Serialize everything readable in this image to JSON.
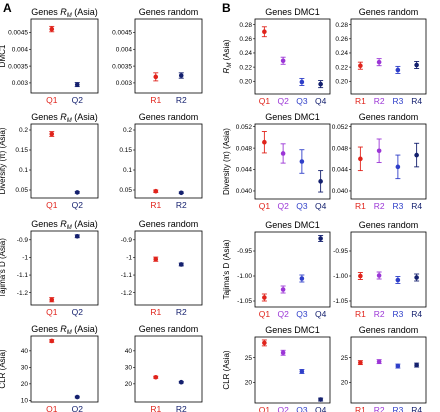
{
  "panel_labels": [
    "A",
    "B"
  ],
  "colors": {
    "q1": "#e0231b",
    "q2": "#9b35d6",
    "q3": "#2f3fc9",
    "q4": "#14206e",
    "frame": "#000000"
  },
  "chart_data": [
    {
      "type": "scatter",
      "title": "Genes R_M (Asia)",
      "ylabel": "DMC1",
      "categories": [
        "Q1",
        "Q2"
      ],
      "colors": [
        "#e0231b",
        "#14206e"
      ],
      "values": [
        0.0046,
        0.00295
      ],
      "err": [
        8e-05,
        6e-05
      ],
      "ylim": [
        0.0027,
        0.0049
      ],
      "yticks": [
        0.003,
        0.0035,
        0.004,
        0.0045
      ],
      "ytick_labels": [
        "0.003",
        "0.0035",
        "0.004",
        "0.0045"
      ]
    },
    {
      "type": "scatter",
      "title": "Genes random",
      "ylabel": "",
      "categories": [
        "R1",
        "R2"
      ],
      "colors": [
        "#e0231b",
        "#14206e"
      ],
      "values": [
        0.00318,
        0.00322
      ],
      "err": [
        0.00012,
        8e-05
      ],
      "ylim": [
        0.0027,
        0.0049
      ],
      "yticks": [
        0.003,
        0.0035,
        0.004,
        0.0045
      ],
      "ytick_labels": [
        "0.003",
        "0.0035",
        "0.004",
        "0.0045"
      ]
    },
    {
      "type": "scatter",
      "title": "Genes R_M (Asia)",
      "ylabel": "Diversity (π) (Asia)",
      "categories": [
        "Q1",
        "Q2"
      ],
      "colors": [
        "#e0231b",
        "#14206e"
      ],
      "values": [
        0.19,
        0.044
      ],
      "err": [
        0.006,
        0.002
      ],
      "ylim": [
        0.03,
        0.215
      ],
      "yticks": [
        0.05,
        0.1,
        0.15,
        0.2
      ],
      "ytick_labels": [
        "0.05",
        "0.1",
        "0.15",
        "0.2"
      ]
    },
    {
      "type": "scatter",
      "title": "Genes random",
      "ylabel": "",
      "categories": [
        "R1",
        "R2"
      ],
      "colors": [
        "#e0231b",
        "#14206e"
      ],
      "values": [
        0.047,
        0.043
      ],
      "err": [
        0.003,
        0.002
      ],
      "ylim": [
        0.03,
        0.215
      ],
      "yticks": [
        0.05,
        0.1,
        0.15,
        0.2
      ],
      "ytick_labels": [
        "0.05",
        "0.1",
        "0.15",
        "0.2"
      ]
    },
    {
      "type": "scatter",
      "title": "Genes R_M (Asia)",
      "ylabel": "Tajima's D (Asia)",
      "categories": [
        "Q1",
        "Q2"
      ],
      "colors": [
        "#e0231b",
        "#14206e"
      ],
      "values": [
        -1.24,
        -0.88
      ],
      "err": [
        0.012,
        0.008
      ],
      "ylim": [
        -1.27,
        -0.85
      ],
      "yticks": [
        -1.2,
        -1.1,
        -1.0,
        -0.9
      ],
      "ytick_labels": [
        "-1.2",
        "-1.1",
        "-1",
        "-0.9"
      ]
    },
    {
      "type": "scatter",
      "title": "Genes random",
      "ylabel": "",
      "categories": [
        "R1",
        "R2"
      ],
      "colors": [
        "#e0231b",
        "#14206e"
      ],
      "values": [
        -1.01,
        -1.04
      ],
      "err": [
        0.012,
        0.008
      ],
      "ylim": [
        -1.27,
        -0.85
      ],
      "yticks": [
        -1.2,
        -1.1,
        -1.0,
        -0.9
      ],
      "ytick_labels": [
        "-1.2",
        "-1.1",
        "-1",
        "-0.9"
      ]
    },
    {
      "type": "scatter",
      "title": "Genes R_M (Asia)",
      "ylabel": "CLR (Asia)",
      "categories": [
        "Q1",
        "Q2"
      ],
      "colors": [
        "#e0231b",
        "#14206e"
      ],
      "values": [
        46,
        12
      ],
      "err": [
        0.8,
        0.5
      ],
      "ylim": [
        9,
        49
      ],
      "yticks": [
        10,
        20,
        30,
        40
      ],
      "ytick_labels": [
        "10",
        "20",
        "30",
        "40"
      ]
    },
    {
      "type": "scatter",
      "title": "Genes random",
      "ylabel": "",
      "categories": [
        "R1",
        "R2"
      ],
      "colors": [
        "#e0231b",
        "#14206e"
      ],
      "values": [
        24,
        21
      ],
      "err": [
        0.6,
        0.5
      ],
      "ylim": [
        9,
        49
      ],
      "yticks": [
        20,
        30,
        40
      ],
      "ytick_labels": [
        "20",
        "30",
        "40"
      ]
    },
    {
      "type": "scatter",
      "title": "Genes DMC1",
      "ylabel": "R_M (Asia)",
      "categories": [
        "Q1",
        "Q2",
        "Q3",
        "Q4"
      ],
      "colors": [
        "#e0231b",
        "#9b35d6",
        "#2f3fc9",
        "#14206e"
      ],
      "values": [
        0.27,
        0.229,
        0.199,
        0.196
      ],
      "err": [
        0.007,
        0.005,
        0.005,
        0.005
      ],
      "ylim": [
        0.182,
        0.288
      ],
      "yticks": [
        0.2,
        0.22,
        0.24,
        0.26,
        0.28
      ],
      "ytick_labels": [
        "0.20",
        "0.22",
        "0.24",
        "0.26",
        "0.28"
      ]
    },
    {
      "type": "scatter",
      "title": "Genes random",
      "ylabel": "",
      "categories": [
        "R1",
        "R2",
        "R3",
        "R4"
      ],
      "colors": [
        "#e0231b",
        "#9b35d6",
        "#2f3fc9",
        "#14206e"
      ],
      "values": [
        0.222,
        0.227,
        0.216,
        0.223
      ],
      "err": [
        0.005,
        0.005,
        0.005,
        0.005
      ],
      "ylim": [
        0.182,
        0.288
      ],
      "yticks": [
        0.2,
        0.22,
        0.24,
        0.26,
        0.28
      ],
      "ytick_labels": [
        "0.20",
        "0.22",
        "0.24",
        "0.26",
        "0.28"
      ]
    },
    {
      "type": "scatter",
      "title": "Genes DMC1",
      "ylabel": "Diversity (π) (Asia)",
      "categories": [
        "Q1",
        "Q2",
        "Q3",
        "Q4"
      ],
      "colors": [
        "#e0231b",
        "#9b35d6",
        "#2f3fc9",
        "#14206e"
      ],
      "values": [
        0.0491,
        0.047,
        0.0455,
        0.0418
      ],
      "err": [
        0.002,
        0.0018,
        0.0022,
        0.002
      ],
      "ylim": [
        0.0385,
        0.0525
      ],
      "yticks": [
        0.04,
        0.044,
        0.048,
        0.052
      ],
      "ytick_labels": [
        "0.040",
        "0.044",
        "0.048",
        "0.052"
      ]
    },
    {
      "type": "scatter",
      "title": "Genes random",
      "ylabel": "",
      "categories": [
        "R1",
        "R2",
        "R3",
        "R4"
      ],
      "colors": [
        "#e0231b",
        "#9b35d6",
        "#2f3fc9",
        "#14206e"
      ],
      "values": [
        0.046,
        0.0475,
        0.0445,
        0.0467
      ],
      "err": [
        0.0022,
        0.0022,
        0.0022,
        0.0022
      ],
      "ylim": [
        0.0385,
        0.0525
      ],
      "yticks": [
        0.04,
        0.044,
        0.048,
        0.052
      ],
      "ytick_labels": [
        "0.040",
        "0.044",
        "0.048",
        "0.052"
      ]
    },
    {
      "type": "scatter",
      "title": "Genes DMC1",
      "ylabel": "Tajima's D (Asia)",
      "categories": [
        "Q1",
        "Q2",
        "Q3",
        "Q4"
      ],
      "colors": [
        "#e0231b",
        "#9b35d6",
        "#2f3fc9",
        "#14206e"
      ],
      "values": [
        -1.043,
        -1.027,
        -1.005,
        -0.925
      ],
      "err": [
        0.007,
        0.007,
        0.007,
        0.006
      ],
      "ylim": [
        -1.062,
        -0.912
      ],
      "yticks": [
        -1.05,
        -1.0,
        -0.95
      ],
      "ytick_labels": [
        "-1.05",
        "-1.00",
        "-0.95"
      ]
    },
    {
      "type": "scatter",
      "title": "Genes random",
      "ylabel": "",
      "categories": [
        "R1",
        "R2",
        "R3",
        "R4"
      ],
      "colors": [
        "#e0231b",
        "#9b35d6",
        "#2f3fc9",
        "#14206e"
      ],
      "values": [
        -1.0,
        -0.999,
        -1.008,
        -1.003
      ],
      "err": [
        0.007,
        0.007,
        0.007,
        0.007
      ],
      "ylim": [
        -1.062,
        -0.912
      ],
      "yticks": [
        -1.05,
        -1.0,
        -0.95
      ],
      "ytick_labels": [
        "-1.05",
        "-1.00",
        "-0.95"
      ]
    },
    {
      "type": "scatter",
      "title": "Genes DMC1",
      "ylabel": "CLR (Asia)",
      "categories": [
        "Q1",
        "Q2",
        "Q3",
        "Q4"
      ],
      "colors": [
        "#e0231b",
        "#9b35d6",
        "#2f3fc9",
        "#14206e"
      ],
      "values": [
        28,
        26,
        22.2,
        16.5
      ],
      "err": [
        0.6,
        0.5,
        0.4,
        0.3
      ],
      "ylim": [
        15.8,
        29.2
      ],
      "yticks": [
        20,
        25
      ],
      "ytick_labels": [
        "20",
        "25"
      ]
    },
    {
      "type": "scatter",
      "title": "Genes random",
      "ylabel": "",
      "categories": [
        "R1",
        "R2",
        "R3",
        "R4"
      ],
      "colors": [
        "#e0231b",
        "#9b35d6",
        "#2f3fc9",
        "#14206e"
      ],
      "values": [
        24,
        24.2,
        23.3,
        23.5
      ],
      "err": [
        0.4,
        0.4,
        0.4,
        0.4
      ],
      "ylim": [
        15.8,
        29.2
      ],
      "yticks": [
        20,
        25
      ],
      "ytick_labels": [
        "20",
        "25"
      ]
    }
  ]
}
